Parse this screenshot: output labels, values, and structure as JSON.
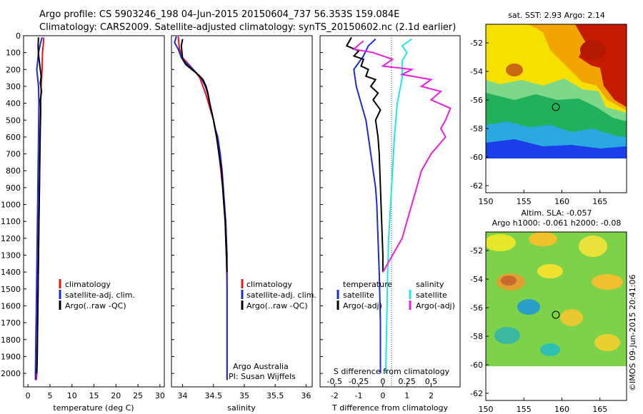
{
  "header": {
    "line1": "Argo profile: CS 5903246_198 04-Jun-2015 20150604_737 56.353S 159.084E",
    "line2": "Climatology: CARS2009. Satellite-adjusted climatology: synTS_20150602.nc (2.1d earlier)"
  },
  "credits": {
    "project": "Argo Australia",
    "pi": "PI: Susan Wijffels",
    "copyright": "©IMOS 09-Jun-2015 20:41:06"
  },
  "colors": {
    "climatology": "#e8141a",
    "satellite": "#1a2bd8",
    "argo": "#000000",
    "salinity_sat": "#1fe4ea",
    "salinity_argo": "#e81ee0"
  },
  "chart_data": [
    {
      "type": "line",
      "id": "temperature",
      "xlabel": "temperature (deg C)",
      "ylabel": "",
      "xlim": [
        -1,
        31
      ],
      "ylim": [
        2080,
        0
      ],
      "xticks": [
        0,
        5,
        10,
        15,
        20,
        25,
        30
      ],
      "yticks": [
        0,
        100,
        200,
        300,
        400,
        500,
        600,
        700,
        800,
        900,
        1000,
        1100,
        1200,
        1300,
        1400,
        1500,
        1600,
        1700,
        1800,
        1900,
        2000
      ],
      "legend": [
        "climatology",
        "satellite-adj. clim.",
        "Argo(..raw -QC)"
      ],
      "series": [
        {
          "name": "climatology",
          "points": [
            [
              3.6,
              10
            ],
            [
              3.5,
              50
            ],
            [
              3.3,
              100
            ],
            [
              3.2,
              200
            ],
            [
              3.0,
              300
            ],
            [
              2.9,
              400
            ],
            [
              2.8,
              500
            ],
            [
              2.7,
              700
            ],
            [
              2.6,
              900
            ],
            [
              2.5,
              1100
            ],
            [
              2.4,
              1300
            ],
            [
              2.3,
              1500
            ],
            [
              2.2,
              1700
            ],
            [
              2.1,
              1900
            ],
            [
              2.0,
              2000
            ],
            [
              1.9,
              2040
            ]
          ]
        },
        {
          "name": "satellite-adj. clim.",
          "points": [
            [
              3.2,
              10
            ],
            [
              2.8,
              50
            ],
            [
              2.4,
              100
            ],
            [
              2.0,
              200
            ],
            [
              2.4,
              300
            ],
            [
              2.5,
              400
            ],
            [
              2.4,
              600
            ],
            [
              2.3,
              800
            ],
            [
              2.2,
              1000
            ],
            [
              2.1,
              1200
            ],
            [
              2.0,
              1400
            ],
            [
              1.9,
              1600
            ],
            [
              1.8,
              1800
            ],
            [
              1.7,
              2000
            ],
            [
              1.7,
              2040
            ]
          ]
        },
        {
          "name": "Argo(..raw -QC)",
          "points": [
            [
              2.4,
              10
            ],
            [
              2.3,
              60
            ],
            [
              2.4,
              110
            ],
            [
              2.7,
              180
            ],
            [
              3.0,
              240
            ],
            [
              2.8,
              280
            ],
            [
              3.1,
              330
            ],
            [
              2.8,
              380
            ],
            [
              2.9,
              450
            ],
            [
              2.8,
              550
            ],
            [
              2.7,
              700
            ],
            [
              2.6,
              900
            ],
            [
              2.5,
              1100
            ],
            [
              2.4,
              1300
            ],
            [
              2.3,
              1500
            ],
            [
              2.2,
              1700
            ],
            [
              2.1,
              1900
            ],
            [
              2.0,
              2000
            ]
          ]
        }
      ]
    },
    {
      "type": "line",
      "id": "salinity",
      "xlabel": "salinity",
      "ylabel": "",
      "xlim": [
        33.82,
        36.1
      ],
      "ylim": [
        2080,
        0
      ],
      "xticks": [
        34,
        34.5,
        35,
        35.5,
        36
      ],
      "xticklabels": [
        "34",
        "34.5",
        "35",
        "35.5",
        "36"
      ],
      "legend": [
        "climatology",
        "satellite-adj. clim.",
        "Argo(..raw -QC)"
      ],
      "series": [
        {
          "name": "climatology",
          "points": [
            [
              33.93,
              5
            ],
            [
              33.95,
              80
            ],
            [
              34.0,
              130
            ],
            [
              34.1,
              170
            ],
            [
              34.2,
              210
            ],
            [
              34.28,
              250
            ],
            [
              34.33,
              300
            ],
            [
              34.38,
              350
            ],
            [
              34.42,
              400
            ],
            [
              34.46,
              450
            ],
            [
              34.5,
              500
            ],
            [
              34.53,
              550
            ],
            [
              34.56,
              600
            ],
            [
              34.59,
              700
            ],
            [
              34.62,
              800
            ],
            [
              34.65,
              900
            ],
            [
              34.67,
              1000
            ],
            [
              34.69,
              1100
            ],
            [
              34.7,
              1200
            ],
            [
              34.71,
              1300
            ],
            [
              34.72,
              1500
            ],
            [
              34.72,
              1800
            ],
            [
              34.72,
              2040
            ]
          ]
        },
        {
          "name": "satellite-adj. clim.",
          "points": [
            [
              33.9,
              5
            ],
            [
              33.87,
              40
            ],
            [
              33.93,
              80
            ],
            [
              33.98,
              130
            ],
            [
              34.08,
              170
            ],
            [
              34.2,
              210
            ],
            [
              34.3,
              250
            ],
            [
              34.37,
              300
            ],
            [
              34.41,
              350
            ],
            [
              34.44,
              400
            ],
            [
              34.47,
              450
            ],
            [
              34.5,
              500
            ],
            [
              34.53,
              550
            ],
            [
              34.57,
              600
            ],
            [
              34.61,
              700
            ],
            [
              34.64,
              800
            ],
            [
              34.66,
              900
            ],
            [
              34.68,
              1000
            ],
            [
              34.7,
              1100
            ],
            [
              34.71,
              1200
            ],
            [
              34.72,
              1300
            ],
            [
              34.72,
              1500
            ],
            [
              34.72,
              1800
            ],
            [
              34.72,
              2040
            ]
          ]
        },
        {
          "name": "Argo(..raw -QC)",
          "points": [
            [
              34.0,
              20
            ],
            [
              33.98,
              60
            ],
            [
              34.0,
              140
            ],
            [
              34.05,
              170
            ],
            [
              34.15,
              200
            ],
            [
              34.25,
              230
            ],
            [
              34.33,
              260
            ],
            [
              34.38,
              300
            ],
            [
              34.41,
              340
            ],
            [
              34.44,
              400
            ],
            [
              34.47,
              450
            ],
            [
              34.5,
              500
            ],
            [
              34.55,
              600
            ],
            [
              34.59,
              700
            ],
            [
              34.63,
              800
            ],
            [
              34.65,
              900
            ],
            [
              34.67,
              1000
            ],
            [
              34.69,
              1100
            ],
            [
              34.7,
              1200
            ],
            [
              34.71,
              1300
            ],
            [
              34.72,
              1400
            ]
          ]
        }
      ]
    },
    {
      "type": "line",
      "id": "difference",
      "xlabel": "T difference from climatology",
      "xlabel2": "S difference from climatology",
      "xlim": [
        -2.6,
        3.2
      ],
      "ylim": [
        2080,
        0
      ],
      "xticks": [
        -2,
        -1,
        0,
        1,
        2
      ],
      "xticks_top": [
        -0.5,
        -0.25,
        0,
        0.25,
        0.5
      ],
      "xticklabels_top": [
        "-0.5",
        "-0.25",
        "0",
        "0.25",
        "0.5"
      ],
      "legend_titles": [
        "temperature",
        "salinity"
      ],
      "legend": [
        "satellite",
        "Argo(-adj)",
        "satellite",
        "Argo(-adj)"
      ],
      "series": [
        {
          "name": "temperature satellite",
          "points": [
            [
              -0.3,
              20
            ],
            [
              -0.6,
              60
            ],
            [
              -0.8,
              120
            ],
            [
              -1.2,
              200
            ],
            [
              -1.1,
              300
            ],
            [
              -0.9,
              400
            ],
            [
              -0.7,
              500
            ],
            [
              -0.6,
              600
            ],
            [
              -0.5,
              700
            ],
            [
              -0.4,
              800
            ],
            [
              -0.3,
              900
            ],
            [
              -0.25,
              1000
            ],
            [
              -0.2,
              1200
            ],
            [
              -0.15,
              1400
            ],
            [
              -0.1,
              1700
            ],
            [
              -0.1,
              2000
            ]
          ]
        },
        {
          "name": "temperature Argo(-adj)",
          "points": [
            [
              -1.3,
              10
            ],
            [
              -1.5,
              60
            ],
            [
              -1.0,
              90
            ],
            [
              -1.2,
              120
            ],
            [
              -0.8,
              140
            ],
            [
              -0.9,
              180
            ],
            [
              -0.6,
              200
            ],
            [
              -0.7,
              240
            ],
            [
              -0.3,
              260
            ],
            [
              -0.5,
              300
            ],
            [
              -0.2,
              340
            ],
            [
              -0.4,
              380
            ],
            [
              -0.1,
              440
            ],
            [
              -0.3,
              500
            ],
            [
              -0.2,
              600
            ],
            [
              -0.15,
              700
            ],
            [
              -0.1,
              900
            ],
            [
              -0.05,
              1100
            ],
            [
              0,
              1300
            ],
            [
              0,
              1400
            ]
          ]
        },
        {
          "name": "salinity satellite",
          "points": [
            [
              0.3,
              20
            ],
            [
              0.2,
              60
            ],
            [
              0.25,
              100
            ],
            [
              0.2,
              150
            ],
            [
              0.2,
              250
            ],
            [
              0.15,
              400
            ],
            [
              0.12,
              600
            ],
            [
              0.1,
              800
            ],
            [
              0.08,
              1000
            ],
            [
              0.06,
              1200
            ],
            [
              0.05,
              1400
            ],
            [
              0.04,
              1700
            ],
            [
              0.03,
              2000
            ]
          ]
        },
        {
          "name": "salinity Argo(-adj)",
          "points": [
            [
              -0.2,
              30
            ],
            [
              -0.3,
              80
            ],
            [
              -0.1,
              100
            ],
            [
              0.1,
              140
            ],
            [
              0.0,
              180
            ],
            [
              0.3,
              200
            ],
            [
              0.2,
              230
            ],
            [
              0.5,
              260
            ],
            [
              0.4,
              300
            ],
            [
              0.6,
              330
            ],
            [
              0.5,
              380
            ],
            [
              0.7,
              430
            ],
            [
              0.65,
              500
            ],
            [
              0.6,
              550
            ],
            [
              0.65,
              600
            ],
            [
              0.5,
              700
            ],
            [
              0.4,
              800
            ],
            [
              0.35,
              900
            ],
            [
              0.3,
              1000
            ],
            [
              0.2,
              1200
            ],
            [
              0.1,
              1300
            ],
            [
              0,
              1400
            ]
          ]
        }
      ]
    },
    {
      "type": "heatmap",
      "id": "sst_map",
      "title": "sat. SST: 2.93 Argo: 2.14",
      "xlim": [
        150,
        168.5
      ],
      "ylim": [
        -62.5,
        -50.7
      ],
      "xticks": [
        150,
        155,
        160,
        165
      ],
      "yticks": [
        -52,
        -54,
        -56,
        -58,
        -60,
        -62
      ],
      "marker": [
        159.084,
        -56.353
      ]
    },
    {
      "type": "heatmap",
      "id": "sla_map",
      "title": "Altim. SLA: -0.057",
      "subtitle": "Argo h1000: -0.061 h2000: -0.08",
      "xlim": [
        150,
        168.5
      ],
      "ylim": [
        -62.5,
        -50.7
      ],
      "xticks": [
        150,
        155,
        160,
        165
      ],
      "yticks": [
        -52,
        -54,
        -56,
        -58,
        -60,
        -62
      ],
      "marker": [
        159.084,
        -56.353
      ]
    }
  ]
}
